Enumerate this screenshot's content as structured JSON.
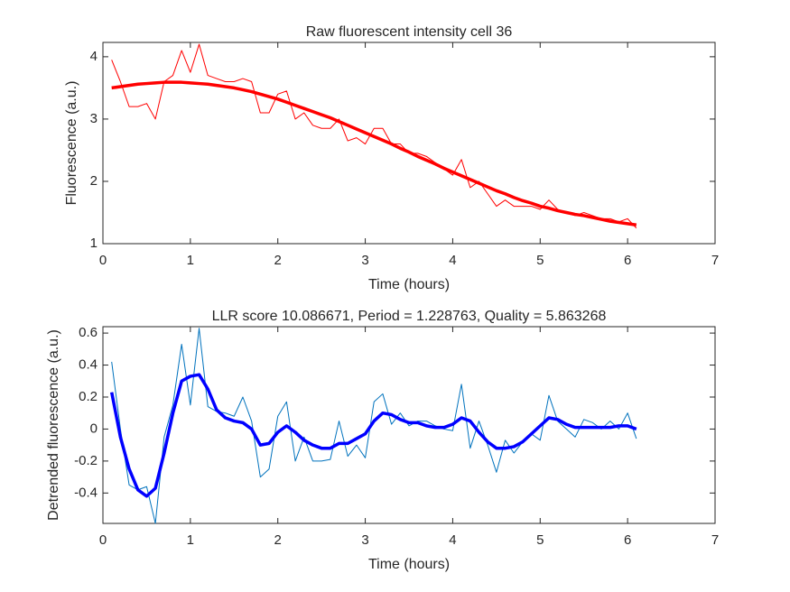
{
  "chart_data": [
    {
      "type": "line",
      "title": "Raw fluorescent intensity cell 36",
      "xlabel": "Time (hours)",
      "ylabel": "Fluorescence (a.u.)",
      "x": [
        0.1,
        0.2,
        0.3,
        0.4,
        0.5,
        0.6,
        0.7,
        0.8,
        0.9,
        1.0,
        1.1,
        1.2,
        1.3,
        1.4,
        1.5,
        1.6,
        1.7,
        1.8,
        1.9,
        2.0,
        2.1,
        2.2,
        2.3,
        2.4,
        2.5,
        2.6,
        2.7,
        2.8,
        2.9,
        3.0,
        3.1,
        3.2,
        3.3,
        3.4,
        3.5,
        3.6,
        3.7,
        3.8,
        3.9,
        4.0,
        4.1,
        4.2,
        4.3,
        4.4,
        4.5,
        4.6,
        4.7,
        4.8,
        4.9,
        5.0,
        5.1,
        5.2,
        5.3,
        5.4,
        5.5,
        5.6,
        5.7,
        5.8,
        5.9,
        6.0,
        6.1
      ],
      "series": [
        {
          "color": "#ff0000",
          "width": 1,
          "values": [
            3.95,
            3.6,
            3.2,
            3.2,
            3.25,
            3.0,
            3.6,
            3.7,
            4.1,
            3.75,
            4.2,
            3.7,
            3.65,
            3.6,
            3.6,
            3.65,
            3.6,
            3.1,
            3.1,
            3.4,
            3.45,
            3.0,
            3.1,
            2.9,
            2.85,
            2.85,
            3.0,
            2.65,
            2.7,
            2.6,
            2.85,
            2.85,
            2.6,
            2.6,
            2.45,
            2.45,
            2.4,
            2.3,
            2.2,
            2.1,
            2.35,
            1.9,
            2.0,
            1.8,
            1.6,
            1.7,
            1.6,
            1.6,
            1.6,
            1.55,
            1.7,
            1.55,
            1.5,
            1.45,
            1.5,
            1.45,
            1.4,
            1.4,
            1.35,
            1.4,
            1.25
          ]
        },
        {
          "color": "#ff0000",
          "width": 3.5,
          "values": [
            3.5,
            3.52,
            3.54,
            3.56,
            3.57,
            3.58,
            3.59,
            3.59,
            3.59,
            3.58,
            3.57,
            3.56,
            3.54,
            3.52,
            3.5,
            3.47,
            3.44,
            3.4,
            3.36,
            3.32,
            3.27,
            3.22,
            3.17,
            3.12,
            3.07,
            3.02,
            2.96,
            2.9,
            2.84,
            2.78,
            2.72,
            2.66,
            2.6,
            2.53,
            2.47,
            2.4,
            2.34,
            2.28,
            2.21,
            2.15,
            2.09,
            2.03,
            1.97,
            1.91,
            1.85,
            1.8,
            1.74,
            1.69,
            1.65,
            1.6,
            1.57,
            1.53,
            1.5,
            1.47,
            1.45,
            1.42,
            1.39,
            1.36,
            1.34,
            1.32,
            1.3
          ]
        }
      ],
      "xlim": [
        0,
        7
      ],
      "xticks": [
        0,
        1,
        2,
        3,
        4,
        5,
        6,
        7
      ],
      "ylim": [
        1,
        4.23
      ],
      "yticks": [
        1,
        2,
        3,
        4
      ]
    },
    {
      "type": "line",
      "title": "LLR score 10.086671, Period = 1.228763, Quality = 5.863268",
      "xlabel": "Time (hours)",
      "ylabel": "Detrended fluorescence (a.u.)",
      "x": [
        0.1,
        0.2,
        0.3,
        0.4,
        0.5,
        0.6,
        0.7,
        0.8,
        0.9,
        1.0,
        1.1,
        1.2,
        1.3,
        1.4,
        1.5,
        1.6,
        1.7,
        1.8,
        1.9,
        2.0,
        2.1,
        2.2,
        2.3,
        2.4,
        2.5,
        2.6,
        2.7,
        2.8,
        2.9,
        3.0,
        3.1,
        3.2,
        3.3,
        3.4,
        3.5,
        3.6,
        3.7,
        3.8,
        3.9,
        4.0,
        4.1,
        4.2,
        4.3,
        4.4,
        4.5,
        4.6,
        4.7,
        4.8,
        4.9,
        5.0,
        5.1,
        5.2,
        5.3,
        5.4,
        5.5,
        5.6,
        5.7,
        5.8,
        5.9,
        6.0,
        6.1
      ],
      "series": [
        {
          "color": "#0072bd",
          "width": 1,
          "values": [
            0.42,
            0.0,
            -0.35,
            -0.38,
            -0.36,
            -0.59,
            -0.05,
            0.15,
            0.53,
            0.15,
            0.63,
            0.14,
            0.11,
            0.1,
            0.08,
            0.2,
            0.05,
            -0.3,
            -0.25,
            0.08,
            0.17,
            -0.2,
            -0.05,
            -0.2,
            -0.2,
            -0.19,
            0.05,
            -0.17,
            -0.1,
            -0.18,
            0.17,
            0.22,
            0.03,
            0.1,
            0.02,
            0.05,
            0.05,
            0.02,
            0.0,
            -0.01,
            0.28,
            -0.12,
            0.05,
            -0.1,
            -0.27,
            -0.07,
            -0.15,
            -0.08,
            -0.03,
            -0.07,
            0.21,
            0.05,
            0.0,
            -0.05,
            0.06,
            0.04,
            0.0,
            0.05,
            0.0,
            0.1,
            -0.06
          ]
        },
        {
          "color": "#0000ff",
          "width": 3.5,
          "values": [
            0.23,
            -0.05,
            -0.25,
            -0.38,
            -0.42,
            -0.37,
            -0.15,
            0.1,
            0.3,
            0.33,
            0.34,
            0.25,
            0.12,
            0.07,
            0.05,
            0.04,
            0.0,
            -0.1,
            -0.09,
            -0.02,
            0.02,
            -0.02,
            -0.07,
            -0.1,
            -0.12,
            -0.12,
            -0.09,
            -0.09,
            -0.06,
            -0.03,
            0.05,
            0.1,
            0.09,
            0.06,
            0.04,
            0.04,
            0.02,
            0.01,
            0.01,
            0.03,
            0.07,
            0.05,
            -0.02,
            -0.08,
            -0.12,
            -0.12,
            -0.11,
            -0.08,
            -0.03,
            0.02,
            0.07,
            0.06,
            0.03,
            0.01,
            0.01,
            0.01,
            0.01,
            0.01,
            0.02,
            0.02,
            0.0
          ]
        }
      ],
      "xlim": [
        0,
        7
      ],
      "xticks": [
        0,
        1,
        2,
        3,
        4,
        5,
        6,
        7
      ],
      "ylim": [
        -0.59,
        0.64
      ],
      "yticks": [
        {
          "value": -0.4,
          "label": "-0.4"
        },
        {
          "value": -0.2,
          "label": "-0.2"
        },
        0,
        {
          "value": 0.2,
          "label": "0.2"
        },
        {
          "value": 0.4,
          "label": "0.4"
        },
        {
          "value": 0.6,
          "label": "0.6"
        }
      ]
    }
  ]
}
